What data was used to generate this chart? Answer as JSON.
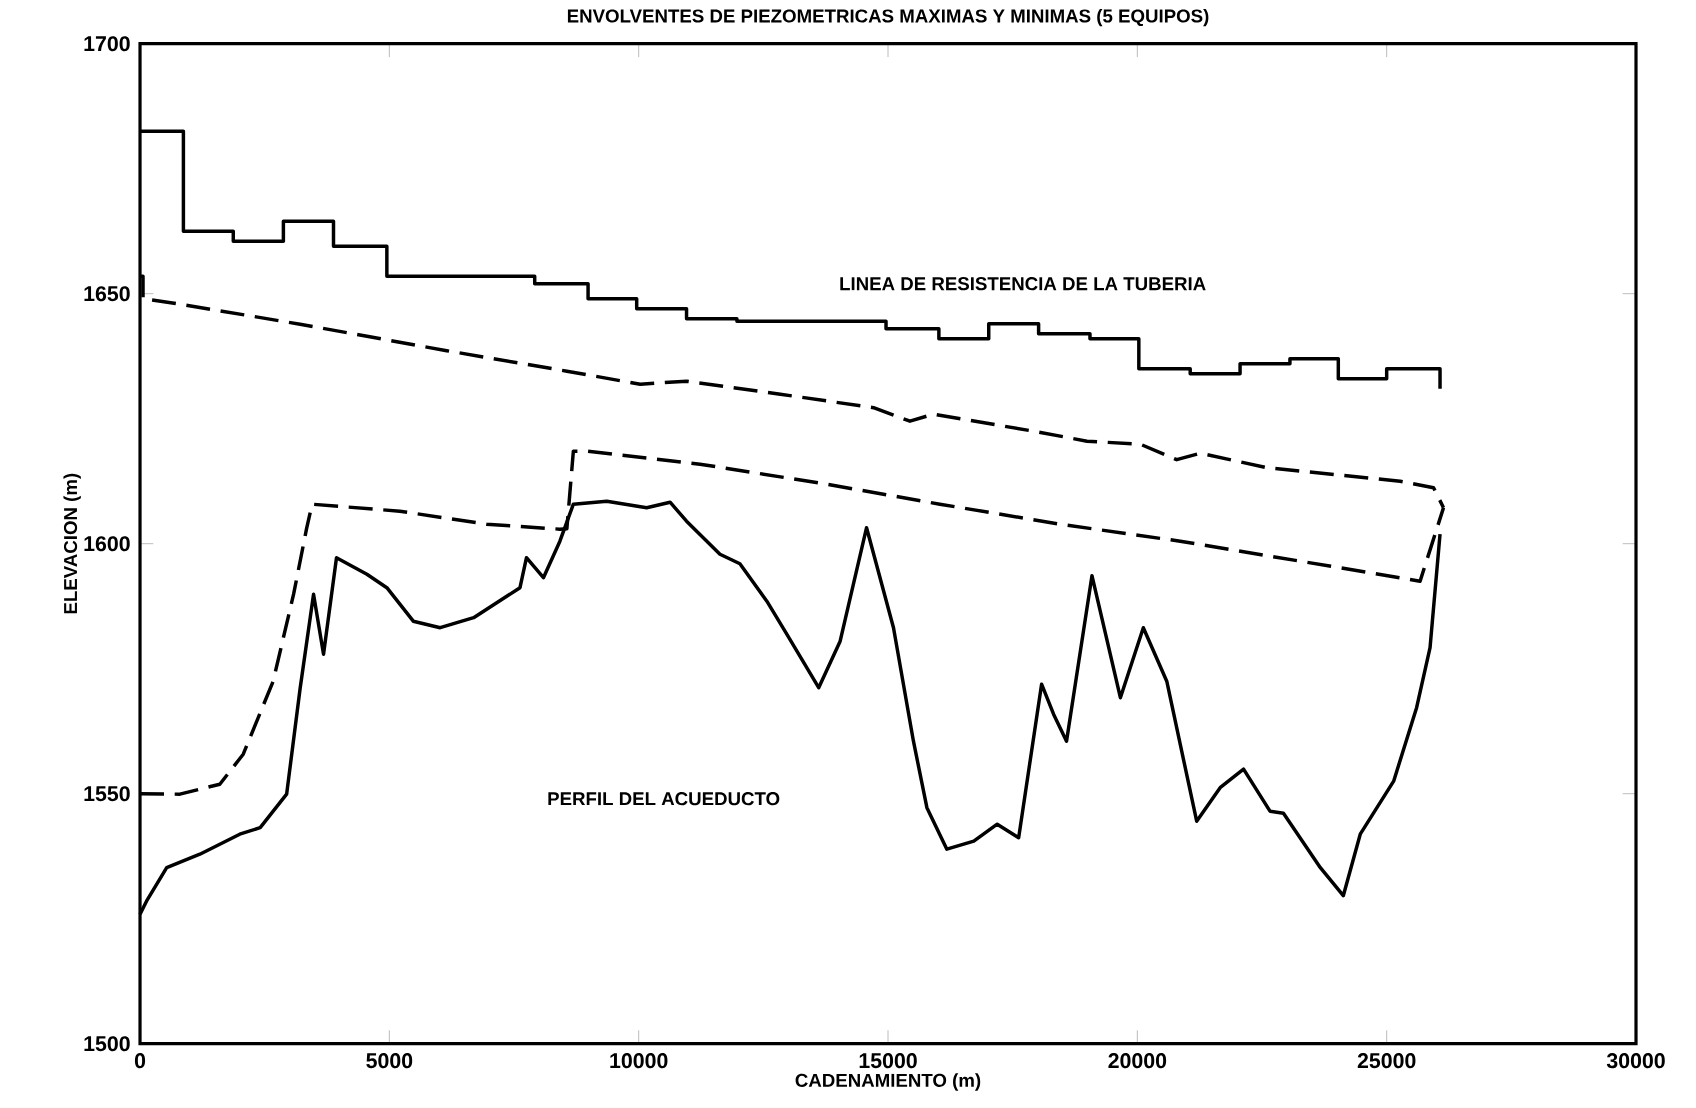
{
  "chart_data": {
    "type": "line",
    "title": "ENVOLVENTES DE PIEZOMETRICAS MAXIMAS Y MINIMAS (5 EQUIPOS)",
    "xlabel": "CADENAMIENTO (m)",
    "ylabel": "ELEVACION (m)",
    "xlim": [
      0,
      30000
    ],
    "ylim": [
      1500,
      1700
    ],
    "xticks": [
      0,
      5000,
      10000,
      15000,
      20000,
      25000,
      30000
    ],
    "yticks": [
      1500,
      1550,
      1600,
      1650,
      1700
    ],
    "grid": false,
    "marker": "none",
    "annotations": [
      "LINEA DE RESISTENCIA DE LA TUBERIA",
      "PERFIL DEL ACUEDUCTO"
    ],
    "series": [
      {
        "type": "step",
        "color": "#000000",
        "line_style": "solid",
        "x": [
          0,
          870,
          1870,
          2875,
          3880,
          4950,
          7915,
          8985,
          9960,
          10960,
          11970,
          14960,
          16020,
          17020,
          18020,
          19050,
          20030,
          21060,
          22060,
          23060,
          24030,
          25000,
          26070
        ],
        "values": [
          1682.5,
          1662.5,
          1660.5,
          1664.5,
          1659.5,
          1653.5,
          1652,
          1649,
          1647,
          1645,
          1644.5,
          1643,
          1641,
          1644,
          1642,
          1641,
          1635,
          1634,
          1636,
          1637,
          1633,
          1635,
          1631
        ]
      },
      {
        "color": "#000000",
        "line_style": "dashed",
        "x": [
          0,
          60,
          60,
          800,
          3210,
          6150,
          8560,
          10030,
          10960,
          12840,
          14710,
          15440,
          15910,
          17920,
          18990,
          20060,
          20790,
          21260,
          22600,
          25270,
          25940,
          26140
        ],
        "values": [
          1653.5,
          1653.5,
          1649,
          1647.9,
          1643.9,
          1638.6,
          1634.5,
          1631.9,
          1632.5,
          1629.9,
          1627.2,
          1624.5,
          1625.9,
          1622.5,
          1620.5,
          1619.9,
          1616.8,
          1618.1,
          1615.2,
          1612.5,
          1611.2,
          1607.2
        ]
      },
      {
        "color": "#000000",
        "line_style": "dashed",
        "x": [
          0,
          800,
          1600,
          2070,
          2670,
          3080,
          3340,
          3450,
          5210,
          6950,
          8420,
          8560,
          8690,
          8960,
          11230,
          13770,
          16040,
          18450,
          20860,
          23270,
          25670,
          26140
        ],
        "values": [
          1550,
          1549.9,
          1551.9,
          1557.9,
          1572.5,
          1589.9,
          1603,
          1607.9,
          1606.5,
          1603.9,
          1602.9,
          1603,
          1618.5,
          1618.5,
          1615.9,
          1611.9,
          1607.9,
          1603.9,
          1600.5,
          1596.5,
          1592.5,
          1607.2
        ]
      },
      {
        "color": "#000000",
        "line_style": "solid",
        "x": [
          0,
          130,
          535,
          1200,
          2000,
          2410,
          2940,
          3210,
          3480,
          3680,
          3940,
          4550,
          4950,
          5480,
          6020,
          6690,
          7620,
          7750,
          8090,
          8420,
          8690,
          9360,
          10160,
          10630,
          10960,
          11630,
          12030,
          12570,
          12970,
          13610,
          14040,
          14570,
          15110,
          15510,
          15780,
          16180,
          16720,
          17190,
          17620,
          18080,
          18320,
          18580,
          19090,
          19660,
          20120,
          20590,
          21190,
          21660,
          22130,
          22660,
          22930,
          23670,
          24130,
          24470,
          25140,
          25600,
          25870,
          26070
        ],
        "values": [
          1525.9,
          1528.5,
          1535.2,
          1537.9,
          1541.9,
          1543.2,
          1549.9,
          1571,
          1589.9,
          1577.9,
          1597.2,
          1593.9,
          1591.2,
          1584.5,
          1583.2,
          1585.2,
          1591.2,
          1597.2,
          1593.2,
          1600.5,
          1607.9,
          1608.5,
          1607.2,
          1608.3,
          1604.5,
          1597.9,
          1596,
          1588.5,
          1581.9,
          1571.2,
          1580.5,
          1603.2,
          1583.2,
          1560.5,
          1547.2,
          1538.9,
          1540.5,
          1543.9,
          1541.2,
          1571.9,
          1565.9,
          1560.5,
          1593.6,
          1569.2,
          1583.2,
          1572.5,
          1544.5,
          1551.2,
          1554.9,
          1546.5,
          1546.1,
          1535.2,
          1529.6,
          1541.9,
          1552.5,
          1567.2,
          1579.2,
          1601.9
        ]
      }
    ]
  }
}
